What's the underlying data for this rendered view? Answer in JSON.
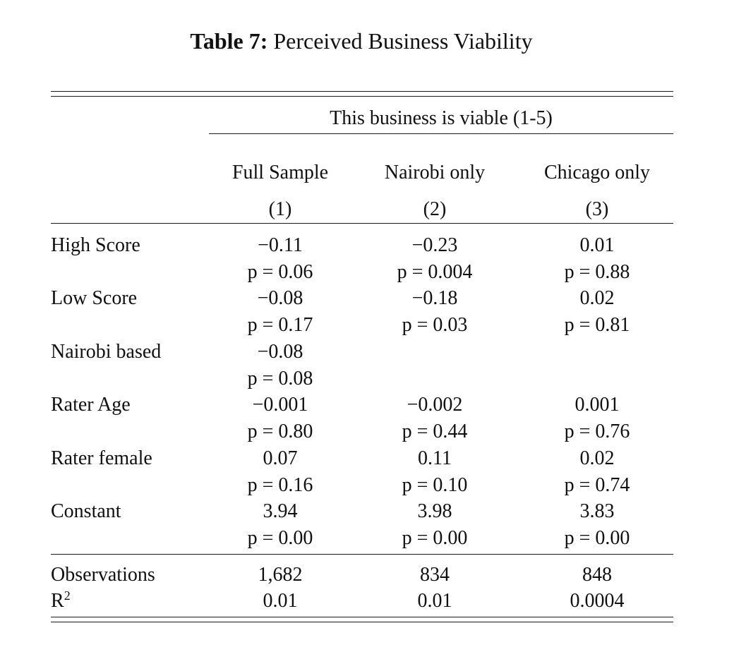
{
  "caption": {
    "label": "Table 7:",
    "title": "Perceived Business Viability"
  },
  "header": {
    "dependent_var": "This business is viable (1-5)",
    "columns": [
      {
        "name": "Full Sample",
        "number": "(1)"
      },
      {
        "name": "Nairobi only",
        "number": "(2)"
      },
      {
        "name": "Chicago only",
        "number": "(3)"
      }
    ]
  },
  "rows": [
    {
      "label": "High Score",
      "coef": [
        "−0.11",
        "−0.23",
        "0.01"
      ],
      "p": [
        "p = 0.06",
        "p = 0.004",
        "p = 0.88"
      ]
    },
    {
      "label": "Low Score",
      "coef": [
        "−0.08",
        "−0.18",
        "0.02"
      ],
      "p": [
        "p = 0.17",
        "p = 0.03",
        "p = 0.81"
      ]
    },
    {
      "label": "Nairobi based",
      "coef": [
        "−0.08",
        "",
        ""
      ],
      "p": [
        "p = 0.08",
        "",
        ""
      ]
    },
    {
      "label": "Rater Age",
      "coef": [
        "−0.001",
        "−0.002",
        "0.001"
      ],
      "p": [
        "p = 0.80",
        "p = 0.44",
        "p = 0.76"
      ]
    },
    {
      "label": "Rater female",
      "coef": [
        "0.07",
        "0.11",
        "0.02"
      ],
      "p": [
        "p = 0.16",
        "p = 0.10",
        "p = 0.74"
      ]
    },
    {
      "label": "Constant",
      "coef": [
        "3.94",
        "3.98",
        "3.83"
      ],
      "p": [
        "p = 0.00",
        "p = 0.00",
        "p = 0.00"
      ]
    }
  ],
  "stats": {
    "observations": {
      "label": "Observations",
      "values": [
        "1,682",
        "834",
        "848"
      ]
    },
    "r2": {
      "label": "R",
      "sup": "2",
      "values": [
        "0.01",
        "0.01",
        "0.0004"
      ]
    }
  }
}
